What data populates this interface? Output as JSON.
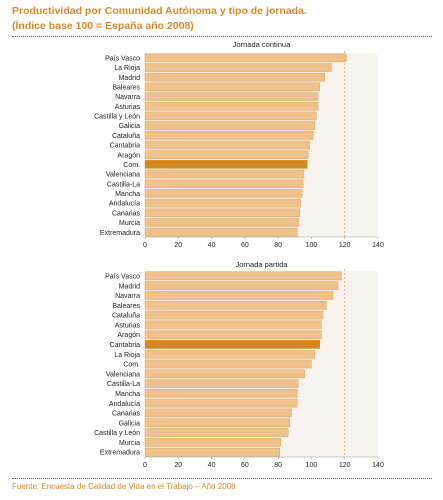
{
  "header": {
    "title_line1": "Productividad por Comunidad Autónoma y tipo de jornada.",
    "title_line2": "(Índice base 100 = España año 2008)"
  },
  "footer": {
    "source": "Fuente: Encuesta de Calidad de Vida en el Trabajo – Año 2008"
  },
  "colors": {
    "bar": "#f0c28b",
    "bar_stroke": "#d69a52",
    "highlight": "#d4891e",
    "title": "#d4892b",
    "plot_bg": "#f7f3ee",
    "reference_line": "#e8a070"
  },
  "chart_data": [
    {
      "type": "bar",
      "orientation": "horizontal",
      "title": "Jornada continua",
      "categories": [
        "País Vasco",
        "La Rioja",
        "Madrid",
        "Baleares",
        "Navarra",
        "Asturias",
        "Castilla y León",
        "Galicia",
        "Cataluña",
        "Cantabria",
        "Aragón",
        "Com.",
        "Valenciana",
        "Castilla-La",
        "Mancha",
        "Andalucía",
        "Canarias",
        "Murcia",
        "Extremadura"
      ],
      "values": [
        121,
        112,
        108,
        105,
        104,
        104,
        103,
        102,
        101,
        99,
        98,
        97.5,
        95.5,
        95,
        94.5,
        93.5,
        93,
        92.5,
        91.5
      ],
      "highlight_index": 11,
      "reference_value": 120,
      "xlim": [
        0,
        140
      ],
      "xticks": [
        "0",
        "20",
        "40",
        "60",
        "80",
        "100",
        "120",
        "140"
      ]
    },
    {
      "type": "bar",
      "orientation": "horizontal",
      "title": "Jornada partida",
      "categories": [
        "País Vasco",
        "Madrid",
        "Navarra",
        "Baleares",
        "Cataluña",
        "Asturias",
        "Aragón",
        "Cantabria",
        "La Rioja",
        "Com.",
        "Valenciana",
        "Castilla-La",
        "Mancha",
        "Andalucía",
        "Canarias",
        "Galicia",
        "Castilla y León",
        "Murcia",
        "Extremadura"
      ],
      "values": [
        118,
        116,
        113,
        109,
        107,
        106,
        106,
        105,
        102,
        100,
        96,
        92,
        91.5,
        91.5,
        88,
        87,
        86,
        81.5,
        81
      ],
      "highlight_index": 7,
      "reference_value": 120,
      "xlim": [
        0,
        140
      ],
      "xticks": [
        "0",
        "20",
        "40",
        "60",
        "80",
        "100",
        "120",
        "140"
      ]
    }
  ]
}
